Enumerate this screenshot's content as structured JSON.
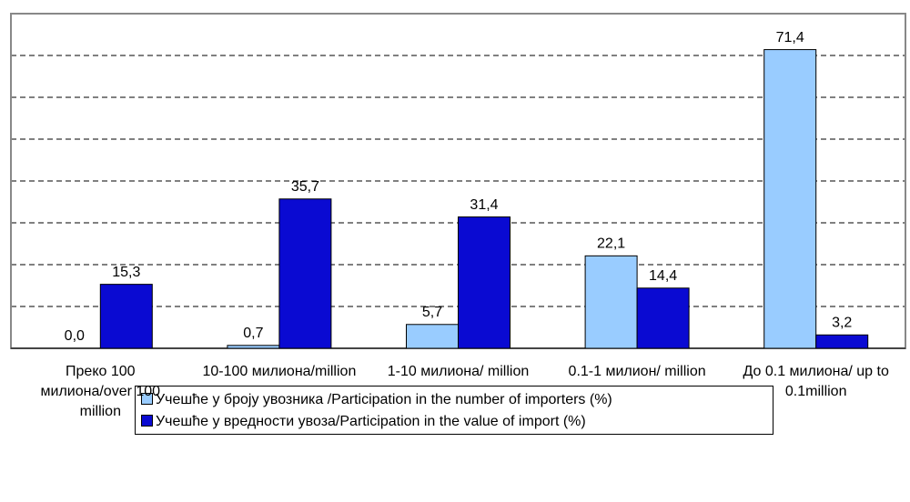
{
  "chart_data": {
    "type": "bar",
    "categories": [
      "Преко 100 милиона/over 100 million",
      "10-100 милиона/million",
      "1-10 милиона/ million",
      "0.1-1 милион/ million",
      "До 0.1 милиона/ up to 0.1million"
    ],
    "series": [
      {
        "name": "Учешће у броју увозника /Participation in the number of importers  (%)",
        "color": "#99ccff",
        "values": [
          0.0,
          0.7,
          5.7,
          22.1,
          71.4
        ],
        "value_labels": [
          "0,0",
          "0,7",
          "5,7",
          "22,1",
          "71,4"
        ]
      },
      {
        "name": "Учешће у вредности увоза/Participation in the value of import (%)",
        "color": "#0a0ad2",
        "values": [
          15.3,
          35.7,
          31.4,
          14.4,
          3.2
        ],
        "value_labels": [
          "15,3",
          "35,7",
          "31,4",
          "14,4",
          "3,2"
        ]
      }
    ],
    "ylim": [
      0,
      80
    ],
    "yticks": [
      0,
      10,
      20,
      30,
      40,
      50,
      60,
      70,
      80
    ],
    "grid": true
  }
}
